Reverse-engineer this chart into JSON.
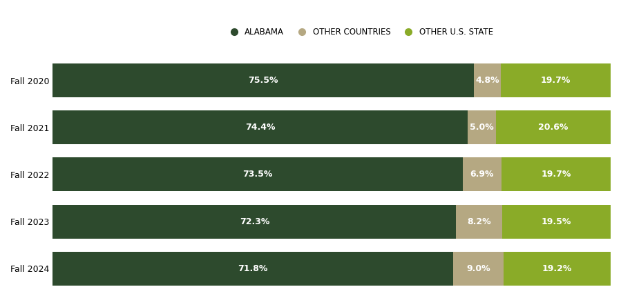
{
  "years": [
    "Fall 2020",
    "Fall 2021",
    "Fall 2022",
    "Fall 2023",
    "Fall 2024"
  ],
  "alabama": [
    75.5,
    74.4,
    73.5,
    72.3,
    71.8
  ],
  "other_countries": [
    4.8,
    5.0,
    6.9,
    8.2,
    9.0
  ],
  "other_us_state": [
    19.7,
    20.6,
    19.7,
    19.5,
    19.2
  ],
  "color_alabama": "#2d4a2d",
  "color_other_countries": "#b5a882",
  "color_other_us_state": "#8aab28",
  "legend_labels": [
    "ALABAMA",
    "OTHER COUNTRIES",
    "OTHER U.S. STATE"
  ],
  "bar_height": 0.72,
  "background_color": "#ffffff",
  "text_color_white": "#ffffff",
  "label_fontsize": 9,
  "legend_fontsize": 8.5,
  "ytick_fontsize": 9
}
